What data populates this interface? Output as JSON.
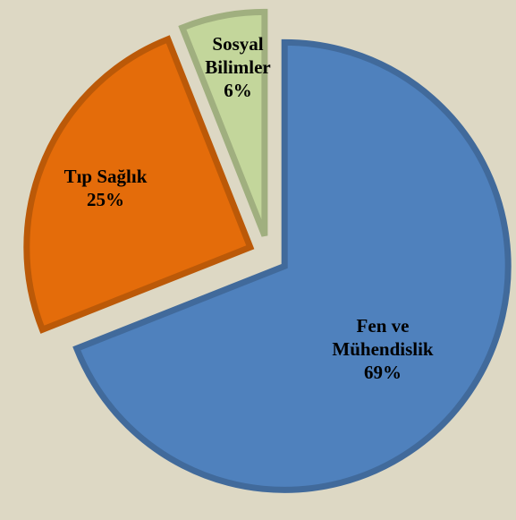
{
  "chart_data": {
    "type": "pie",
    "categories": [
      "Fen ve Mühendislik",
      "Tıp Sağlık",
      "Sosyal Bilimler"
    ],
    "values": [
      69,
      25,
      6
    ],
    "value_labels": [
      "69%",
      "25%",
      "6%"
    ],
    "colors": [
      "#4f81bd",
      "#e46c0a",
      "#c3d69b"
    ],
    "start_angle": 0,
    "direction": "clockwise",
    "exploded": true
  }
}
